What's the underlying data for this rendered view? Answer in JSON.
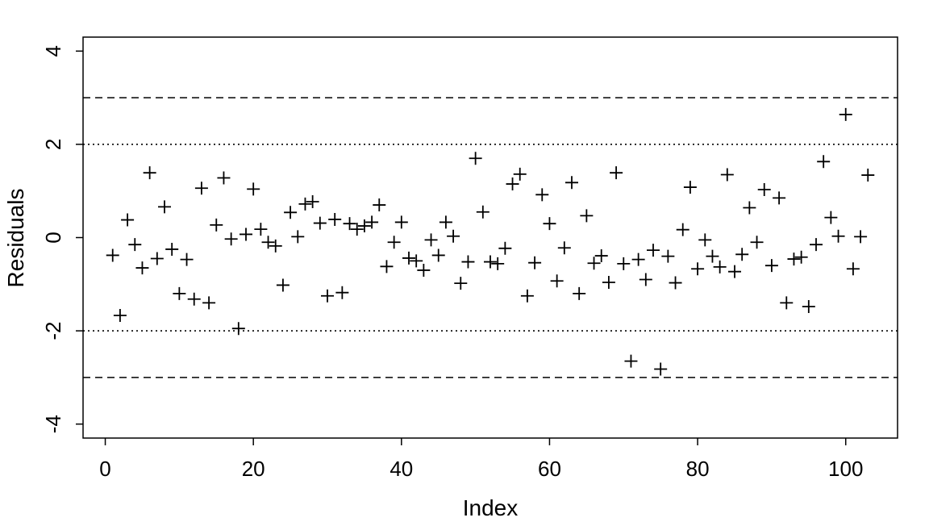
{
  "chart_data": {
    "type": "scatter",
    "title": "",
    "xlabel": "Index",
    "ylabel": "Residuals",
    "xlim": [
      -3,
      107
    ],
    "ylim": [
      -4.3,
      4.3
    ],
    "x_ticks": [
      0,
      20,
      40,
      60,
      80,
      100
    ],
    "x_tick_labels": [
      "0",
      "20",
      "40",
      "60",
      "80",
      "100"
    ],
    "y_ticks": [
      -4,
      -2,
      0,
      2,
      4
    ],
    "y_tick_labels": [
      "-4",
      "-2",
      "0",
      "2",
      "4"
    ],
    "grid": false,
    "legend": "none",
    "marker": "plus",
    "reference_lines": [
      {
        "y": 3,
        "style": "dashed"
      },
      {
        "y": -3,
        "style": "dashed"
      },
      {
        "y": 2,
        "style": "dotted"
      },
      {
        "y": -2,
        "style": "dotted"
      }
    ],
    "series": [
      {
        "x": [
          1,
          2,
          3,
          4,
          5,
          6,
          7,
          8,
          9,
          10,
          11,
          12,
          13,
          14,
          15,
          16,
          17,
          18,
          19,
          20,
          21,
          22,
          23,
          24,
          25,
          26,
          27,
          28,
          29,
          30,
          31,
          32,
          33,
          34,
          35,
          36,
          37,
          38,
          39,
          40,
          41,
          42,
          43,
          44,
          45,
          46,
          47,
          48,
          49,
          50,
          51,
          52,
          53,
          54,
          55,
          56,
          57,
          58,
          59,
          60,
          61,
          62,
          63,
          64,
          65,
          66,
          67,
          68,
          69,
          70,
          71,
          72,
          73,
          74,
          75,
          76,
          77,
          78,
          79,
          80,
          81,
          82,
          83,
          84,
          85,
          86,
          87,
          88,
          89,
          90,
          91,
          92,
          93,
          94,
          95,
          96,
          97,
          98,
          99,
          100,
          101,
          102,
          103
        ],
        "values": [
          -0.38,
          -1.67,
          0.38,
          -0.15,
          -0.65,
          1.39,
          -0.45,
          0.66,
          -0.25,
          -1.2,
          -0.47,
          -1.32,
          1.06,
          -1.4,
          0.27,
          1.28,
          -0.03,
          -1.95,
          0.07,
          1.04,
          0.18,
          -0.1,
          -0.18,
          -1.02,
          0.54,
          0.02,
          0.72,
          0.77,
          0.31,
          -1.25,
          0.39,
          -1.18,
          0.3,
          0.18,
          0.25,
          0.33,
          0.7,
          -0.62,
          -0.1,
          0.33,
          -0.44,
          -0.5,
          -0.7,
          -0.05,
          -0.38,
          0.33,
          0.03,
          -0.98,
          -0.52,
          1.7,
          0.55,
          -0.52,
          -0.56,
          -0.23,
          1.15,
          1.36,
          -1.25,
          -0.54,
          0.92,
          0.3,
          -0.93,
          -0.22,
          1.18,
          -1.2,
          0.47,
          -0.55,
          -0.39,
          -0.96,
          1.39,
          -0.56,
          -2.65,
          -0.47,
          -0.9,
          -0.27,
          -2.82,
          -0.4,
          -0.97,
          0.17,
          1.08,
          -0.67,
          -0.05,
          -0.4,
          -0.63,
          1.35,
          -0.73,
          -0.36,
          0.64,
          -0.1,
          1.03,
          -0.6,
          0.85,
          -1.4,
          -0.46,
          -0.42,
          -1.48,
          -0.15,
          1.63,
          0.43,
          0.03,
          2.64,
          -0.67,
          0.02,
          1.34
        ]
      }
    ]
  }
}
